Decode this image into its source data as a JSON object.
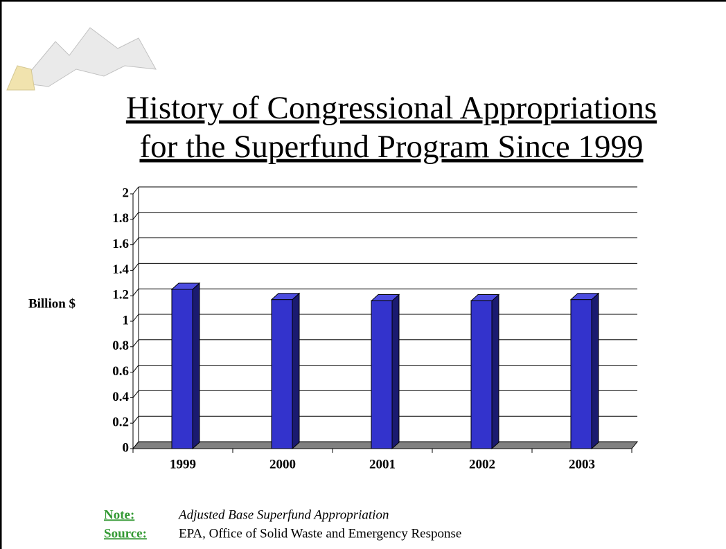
{
  "chart_data": {
    "type": "bar3d",
    "title_lines": [
      "History of Congressional Appropriations",
      "for the Superfund Program Since 1999"
    ],
    "y_label": "Billion $",
    "categories": [
      "1999",
      "2000",
      "2001",
      "2002",
      "2003"
    ],
    "values": [
      1.25,
      1.17,
      1.16,
      1.16,
      1.17
    ],
    "color": "#3333cc",
    "ylim": [
      0,
      2
    ],
    "yticks": [
      0,
      0.2,
      0.4,
      0.6,
      0.8,
      1,
      1.2,
      1.4,
      1.6,
      1.8,
      2
    ],
    "grid": true
  },
  "footnotes": [
    {
      "label": "Note:",
      "text": "Adjusted Base Superfund Appropriation"
    },
    {
      "label": "Source:",
      "text": "EPA, Office of Solid Waste and Emergency Response"
    }
  ]
}
